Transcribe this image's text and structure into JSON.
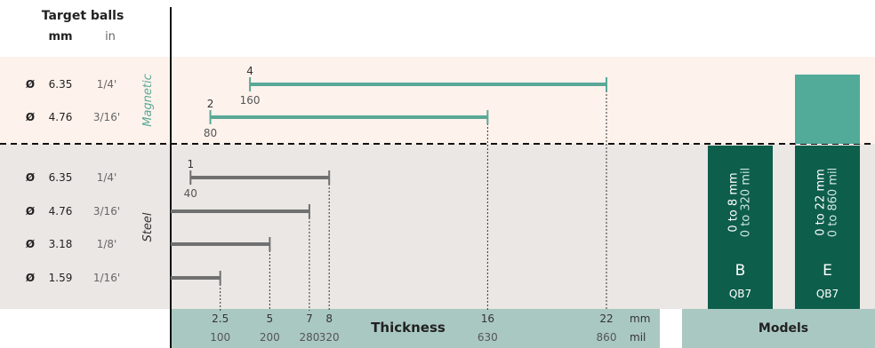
{
  "header": {
    "title": "Target balls",
    "unit_mm": "mm",
    "unit_in": "in"
  },
  "groups": [
    {
      "label": "Magnetic",
      "color": "#5aa897"
    },
    {
      "label": "Steel",
      "color": "#2f2f2f"
    }
  ],
  "diameter_symbol": "Ø",
  "chart_data": {
    "type": "range-bar",
    "rows": [
      {
        "group": "Magnetic",
        "diameter_mm": "6.35",
        "diameter_in": "1/4'",
        "min_mm": 4,
        "min_mil": 160,
        "max_mm": 22,
        "start_label": "4",
        "start_sub": "160",
        "color": "#5aa897"
      },
      {
        "group": "Magnetic",
        "diameter_mm": "4.76",
        "diameter_in": "3/16'",
        "min_mm": 2,
        "min_mil": 80,
        "max_mm": 16,
        "start_label": "2",
        "start_sub": "80",
        "color": "#5aa897"
      },
      {
        "group": "Steel",
        "diameter_mm": "6.35",
        "diameter_in": "1/4'",
        "min_mm": 1,
        "min_mil": 40,
        "max_mm": 8,
        "start_label": "1",
        "start_sub": "40",
        "color": "#707070"
      },
      {
        "group": "Steel",
        "diameter_mm": "4.76",
        "diameter_in": "3/16'",
        "min_mm": 0,
        "max_mm": 7,
        "start_label": "",
        "start_sub": "",
        "color": "#707070"
      },
      {
        "group": "Steel",
        "diameter_mm": "3.18",
        "diameter_in": "1/8'",
        "min_mm": 0,
        "max_mm": 5,
        "start_label": "",
        "start_sub": "",
        "color": "#707070"
      },
      {
        "group": "Steel",
        "diameter_mm": "1.59",
        "diameter_in": "1/16'",
        "min_mm": 0,
        "max_mm": 2.5,
        "start_label": "",
        "start_sub": "",
        "color": "#707070"
      }
    ],
    "x_ticks": [
      {
        "mm": 2.5,
        "label_mm": "2.5",
        "label_mil": "100"
      },
      {
        "mm": 5,
        "label_mm": "5",
        "label_mil": "200"
      },
      {
        "mm": 7,
        "label_mm": "7",
        "label_mil": "280"
      },
      {
        "mm": 8,
        "label_mm": "8",
        "label_mil": "320"
      },
      {
        "mm": 16,
        "label_mm": "16",
        "label_mil": "630"
      },
      {
        "mm": 22,
        "label_mm": "22",
        "label_mil": "860"
      }
    ],
    "xlim_mm": [
      0,
      22
    ],
    "xlabel": "Thickness",
    "x_unit_mm": "mm",
    "x_unit_mil": "mil"
  },
  "models": {
    "title": "Models",
    "items": [
      {
        "letter": "B",
        "code": "QB7",
        "range_mm": "0 to 8 mm",
        "range_mil": "0 to 320 mil",
        "steel_only": true
      },
      {
        "letter": "E",
        "code": "QB7",
        "range_mm": "0 to 22 mm",
        "range_mil": "0 to 860 mil",
        "steel_only": false
      }
    ]
  },
  "colors": {
    "magnetic_band": "#fdf2ec",
    "steel_band": "#ebe7e4",
    "axis_band": "#aac8c2",
    "model_dark": "#0e5e4c",
    "model_light": "#52ab98",
    "magnetic_bar": "#5aa897",
    "steel_bar": "#707070"
  }
}
